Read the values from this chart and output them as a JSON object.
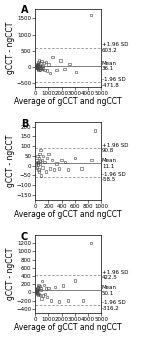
{
  "panels": [
    {
      "label": "A",
      "xlim": [
        0,
        5000
      ],
      "ylim": [
        -600,
        1800
      ],
      "xticks": [
        0,
        1000,
        2000,
        3000,
        4000,
        5000
      ],
      "yticks": [
        -500,
        0,
        500,
        1000,
        1500
      ],
      "mean": 36.1,
      "upper_loa": 603.2,
      "lower_loa": -471.8,
      "mean_label": "Mean\n36.1",
      "upper_label": "+1.96 SD\n603.2",
      "lower_label": "-1.96 SD\n-471.8",
      "xlabel": "Average of gCCT and ngCCT",
      "ylabel": "gCCT - ngCCT",
      "scatter_x": [
        30,
        50,
        60,
        80,
        90,
        100,
        110,
        120,
        130,
        150,
        160,
        170,
        190,
        200,
        220,
        240,
        260,
        280,
        300,
        320,
        350,
        380,
        400,
        430,
        460,
        500,
        550,
        600,
        650,
        700,
        800,
        900,
        1000,
        1100,
        1300,
        1600,
        1900,
        2200,
        2600,
        3100,
        4200
      ],
      "scatter_y": [
        20,
        60,
        10,
        -20,
        40,
        80,
        30,
        -10,
        50,
        -30,
        70,
        20,
        -40,
        90,
        -50,
        150,
        -70,
        200,
        30,
        -20,
        60,
        -80,
        110,
        -30,
        180,
        -60,
        40,
        -40,
        120,
        -90,
        160,
        -100,
        80,
        -180,
        310,
        -90,
        200,
        -55,
        100,
        -150,
        1600
      ]
    },
    {
      "label": "B",
      "xlim": [
        0,
        1000
      ],
      "ylim": [
        -175,
        225
      ],
      "xticks": [
        0,
        200,
        400,
        600,
        800,
        1000
      ],
      "yticks": [
        -150,
        -100,
        -50,
        0,
        50,
        100,
        150,
        200
      ],
      "mean": 11.1,
      "upper_loa": 90.8,
      "lower_loa": -58.5,
      "mean_label": "Mean\n11.1",
      "upper_label": "+1.96 SD\n90.8",
      "lower_label": "-1.96 SD\n-58.5",
      "xlabel": "Average of gCCT and ngCCT",
      "ylabel": "gCCT - ngCCT",
      "scatter_x": [
        10,
        20,
        25,
        30,
        35,
        40,
        45,
        50,
        55,
        60,
        65,
        70,
        75,
        80,
        90,
        100,
        110,
        120,
        140,
        160,
        180,
        200,
        220,
        250,
        280,
        320,
        360,
        400,
        450,
        500,
        600,
        700,
        850,
        900
      ],
      "scatter_y": [
        10,
        30,
        15,
        -10,
        50,
        20,
        5,
        -20,
        40,
        -30,
        60,
        10,
        25,
        80,
        -50,
        30,
        -10,
        50,
        20,
        -30,
        40,
        60,
        -15,
        30,
        -20,
        10,
        -15,
        30,
        20,
        -20,
        40,
        -15,
        30,
        180
      ]
    },
    {
      "label": "C",
      "xlim": [
        0,
        5000
      ],
      "ylim": [
        -500,
        1400
      ],
      "xticks": [
        0,
        1000,
        2000,
        3000,
        4000,
        5000
      ],
      "yticks": [
        -400,
        -200,
        0,
        200,
        400,
        600,
        800,
        1000,
        1200
      ],
      "mean": 50.1,
      "upper_loa": 422.5,
      "lower_loa": -316.2,
      "mean_label": "Mean\n50.1",
      "upper_label": "+1.96 SD\n422.5",
      "lower_label": "-1.96 SD\n-316.2",
      "xlabel": "Average of gCCT and ngCCT",
      "ylabel": "gCCT - ngCCT",
      "scatter_x": [
        30,
        50,
        60,
        80,
        90,
        100,
        110,
        120,
        130,
        150,
        160,
        180,
        200,
        220,
        250,
        280,
        310,
        350,
        390,
        430,
        480,
        530,
        590,
        650,
        720,
        800,
        900,
        1000,
        1200,
        1500,
        1800,
        2100,
        2500,
        3000,
        3600,
        4200
      ],
      "scatter_y": [
        30,
        60,
        20,
        -10,
        70,
        40,
        10,
        80,
        30,
        -20,
        90,
        -30,
        120,
        -60,
        180,
        -40,
        150,
        -70,
        60,
        100,
        -150,
        270,
        -80,
        180,
        -40,
        90,
        -120,
        110,
        -200,
        130,
        -225,
        170,
        -200,
        290,
        -200,
        1200
      ]
    }
  ],
  "figure_bg": "#ffffff",
  "line_color_mean": "#808080",
  "line_color_loa": "#909090",
  "scatter_color": "#444444",
  "annotation_fontsize": 4.0,
  "label_fontsize": 5.5,
  "tick_fontsize": 4.0
}
